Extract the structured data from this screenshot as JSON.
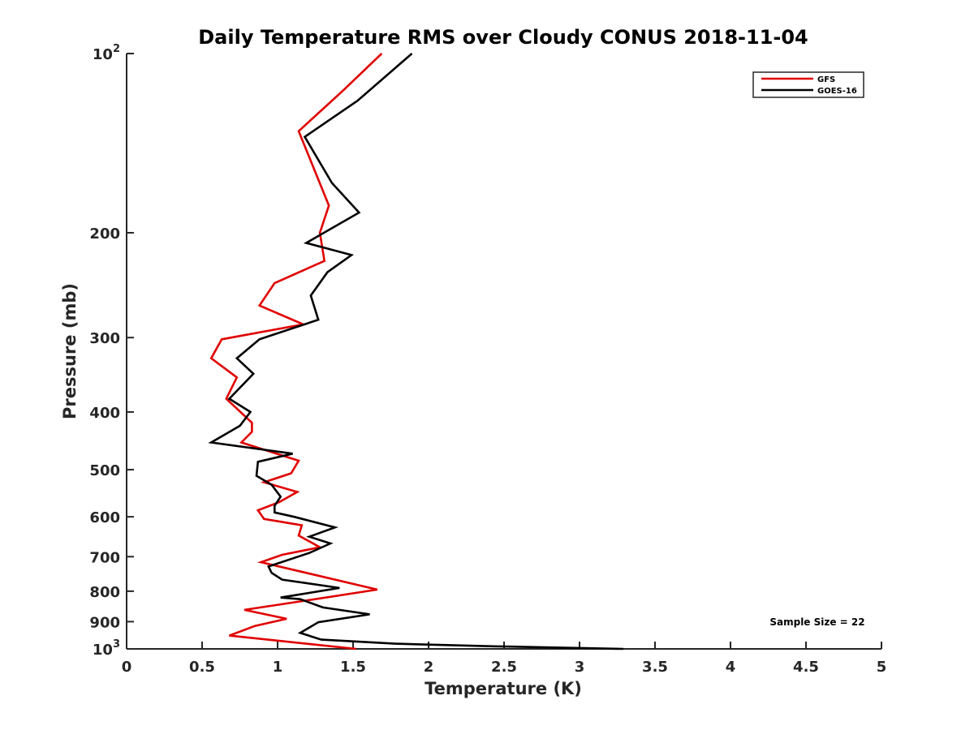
{
  "chart_data": {
    "type": "line",
    "title": "Daily Temperature RMS over Cloudy CONUS 2018-11-04",
    "xlabel": "Temperature (K)",
    "ylabel": "Pressure (mb)",
    "xlim": [
      0,
      5
    ],
    "ylim": [
      1000,
      100
    ],
    "y_scale": "log",
    "y_reversed": true,
    "x_ticks": [
      0,
      0.5,
      1,
      1.5,
      2,
      2.5,
      3,
      3.5,
      4,
      4.5,
      5
    ],
    "x_tick_labels": [
      "0",
      "0.5",
      "1",
      "1.5",
      "2",
      "2.5",
      "3",
      "3.5",
      "4",
      "4.5",
      "5"
    ],
    "y_ticks": [
      {
        "value": 100,
        "base": "10",
        "exp": "2"
      },
      {
        "value": 200,
        "label": "200"
      },
      {
        "value": 300,
        "label": "300"
      },
      {
        "value": 400,
        "label": "400"
      },
      {
        "value": 500,
        "label": "500"
      },
      {
        "value": 600,
        "label": "600"
      },
      {
        "value": 700,
        "label": "700"
      },
      {
        "value": 800,
        "label": "800"
      },
      {
        "value": 900,
        "label": "900"
      },
      {
        "value": 1000,
        "base": "10",
        "exp": "3"
      }
    ],
    "grid": false,
    "legend_position": "top-right",
    "annotation": "Sample Size = 22",
    "series": [
      {
        "name": "GFS",
        "color": "#e00000",
        "x": [
          1.69,
          1.44,
          1.14,
          1.34,
          1.28,
          1.31,
          0.98,
          0.88,
          1.17,
          0.63,
          0.56,
          0.73,
          0.66,
          0.83,
          0.83,
          0.76,
          1.14,
          1.09,
          0.91,
          1.13,
          1.01,
          0.87,
          0.91,
          1.16,
          1.14,
          1.28,
          1.03,
          0.89,
          1.66,
          1.18,
          0.78,
          1.06,
          0.85,
          0.68,
          1.52
        ],
        "y": [
          100,
          115,
          135,
          180,
          200,
          223,
          243,
          265,
          285,
          302,
          325,
          350,
          380,
          417,
          432,
          450,
          483,
          507,
          525,
          545,
          567,
          585,
          605,
          620,
          645,
          675,
          695,
          715,
          795,
          830,
          860,
          890,
          915,
          950,
          1000
        ]
      },
      {
        "name": "GOES-16",
        "color": "#000000",
        "x": [
          1.89,
          1.53,
          1.18,
          1.36,
          1.54,
          1.19,
          1.49,
          1.33,
          1.22,
          1.27,
          0.88,
          0.73,
          0.84,
          0.68,
          0.82,
          0.75,
          0.56,
          1.1,
          0.87,
          0.86,
          0.96,
          1.02,
          0.98,
          0.98,
          1.11,
          1.38,
          1.21,
          1.35,
          1.21,
          0.94,
          0.96,
          1.03,
          1.41,
          1.02,
          1.15,
          1.3,
          1.61,
          1.27,
          1.26,
          1.15,
          1.29,
          1.78,
          2.43,
          3.29
        ],
        "y": [
          100,
          120,
          138,
          165,
          185,
          208,
          218,
          233,
          255,
          280,
          302,
          325,
          345,
          380,
          400,
          422,
          450,
          470,
          485,
          512,
          530,
          555,
          575,
          590,
          600,
          625,
          648,
          665,
          690,
          727,
          745,
          765,
          790,
          820,
          825,
          852,
          875,
          902,
          905,
          940,
          965,
          980,
          990,
          1000
        ]
      }
    ]
  }
}
